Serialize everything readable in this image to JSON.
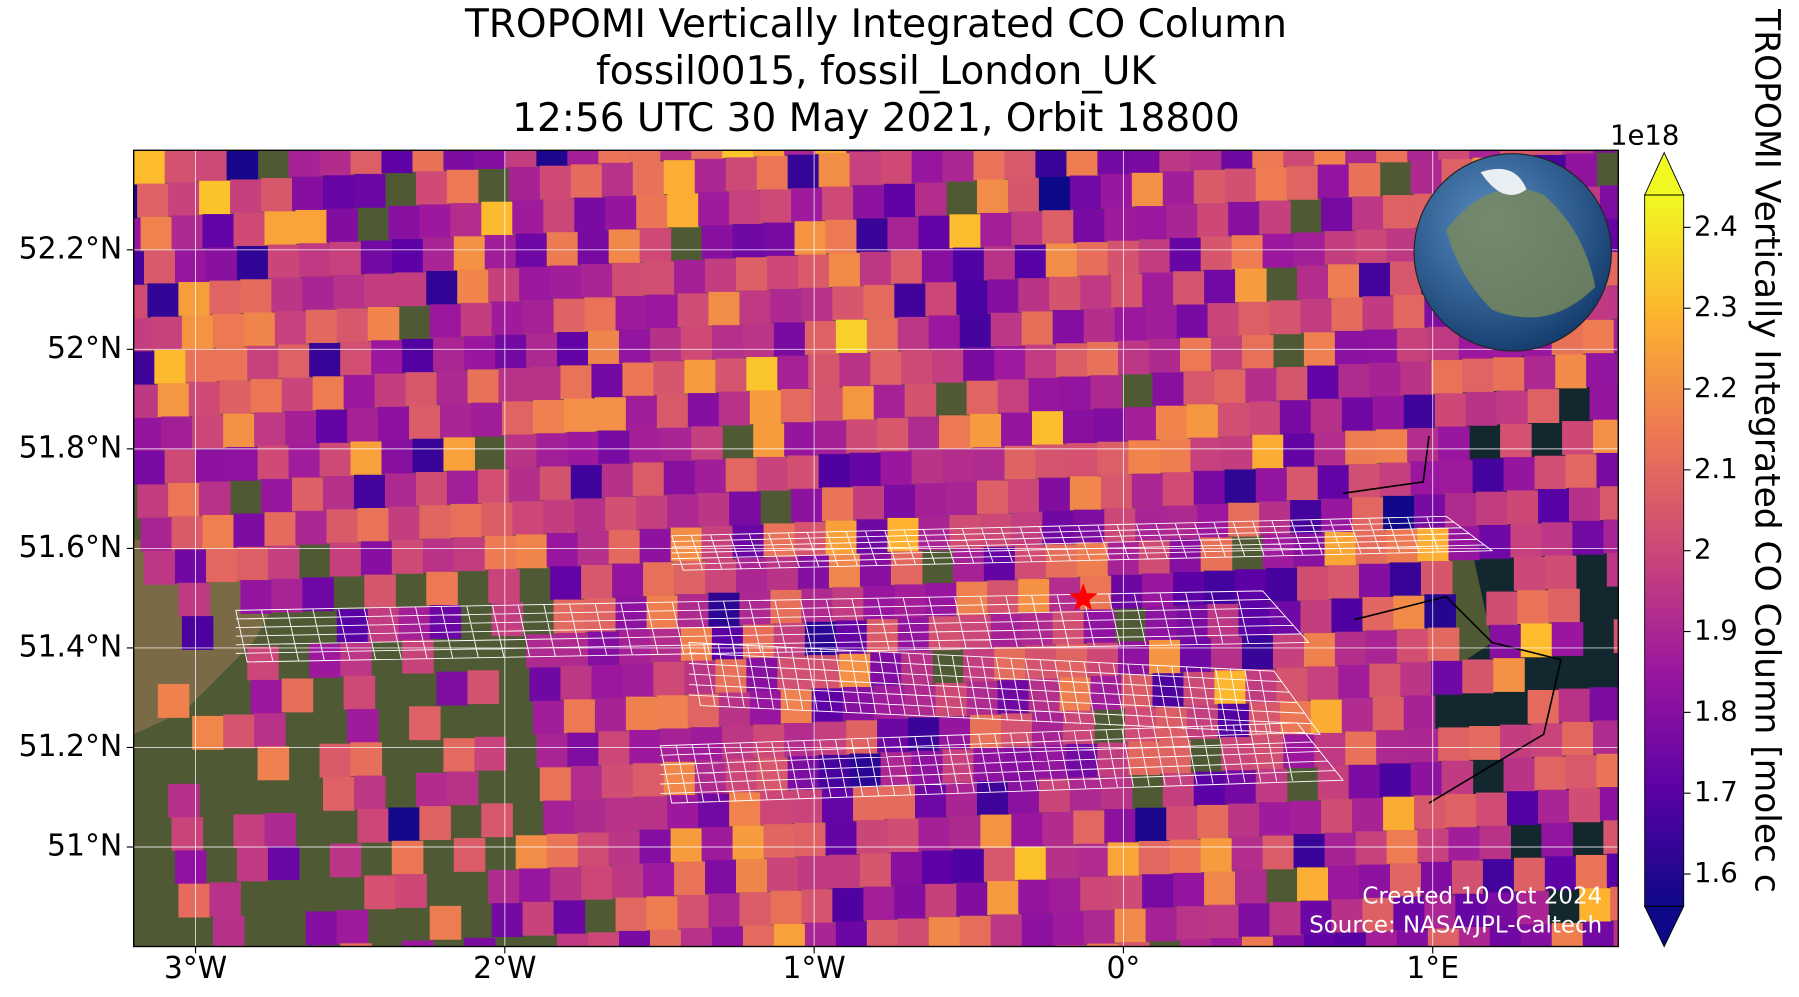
{
  "chart_data": {
    "type": "map",
    "title": [
      "TROPOMI Vertically Integrated CO Column",
      "fossil0015, fossil_London_UK",
      "12:56 UTC 30 May 2021, Orbit 18800"
    ],
    "xlim": [
      -3.2,
      1.6
    ],
    "ylim": [
      50.8,
      52.4
    ],
    "xticks": [
      {
        "value": -3,
        "label": "3°W"
      },
      {
        "value": -2,
        "label": "2°W"
      },
      {
        "value": -1,
        "label": "1°W"
      },
      {
        "value": 0,
        "label": "0°"
      },
      {
        "value": 1,
        "label": "1°E"
      }
    ],
    "yticks": [
      {
        "value": 51,
        "label": "51°N"
      },
      {
        "value": 51.2,
        "label": "51.2°N"
      },
      {
        "value": 51.4,
        "label": "51.4°N"
      },
      {
        "value": 51.6,
        "label": "51.6°N"
      },
      {
        "value": 51.8,
        "label": "51.8°N"
      },
      {
        "value": 52,
        "label": "52°N"
      },
      {
        "value": 52.2,
        "label": "52.2°N"
      }
    ],
    "grid": true,
    "colorbar": {
      "label": "TROPOMI Vertically Integrated CO Column [molec c",
      "scale_label": "1e18",
      "lim": [
        1.56,
        2.44
      ],
      "ticks": [
        1.6,
        1.7,
        1.8,
        1.9,
        2.0,
        2.1,
        2.2,
        2.3,
        2.4
      ],
      "colormap": [
        "#0d0887",
        "#5c01a6",
        "#9c179e",
        "#cc4778",
        "#ed7953",
        "#fdb42f",
        "#f0f921"
      ]
    },
    "marker": {
      "lon": -0.13,
      "lat": 51.5,
      "color": "#ff0000"
    },
    "annotations": [
      "Created 10 Oct 2024",
      "Source: NASA/JPL-Caltech"
    ]
  }
}
